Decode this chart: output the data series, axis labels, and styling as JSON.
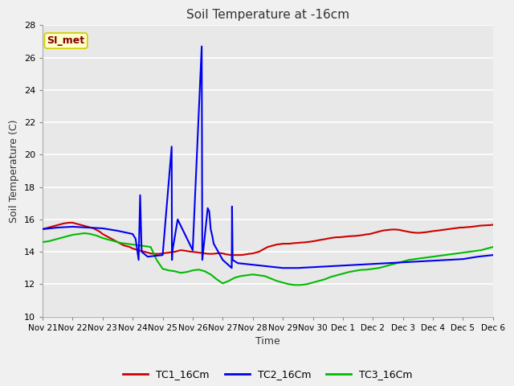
{
  "title": "Soil Temperature at -16cm",
  "xlabel": "Time",
  "ylabel": "Soil Temperature (C)",
  "ylim": [
    10,
    28
  ],
  "yticks": [
    10,
    12,
    14,
    16,
    18,
    20,
    22,
    24,
    26,
    28
  ],
  "fig_bg_color": "#f0f0f0",
  "plot_bg_color": "#e8e8e8",
  "grid_color": "#ffffff",
  "annotation_text": "SI_met",
  "annotation_bg": "#ffffcc",
  "annotation_border": "#cccc00",
  "annotation_text_color": "#880000",
  "tc1_color": "#cc0000",
  "tc2_color": "#0000ee",
  "tc3_color": "#00bb00",
  "legend_labels": [
    "TC1_16Cm",
    "TC2_16Cm",
    "TC3_16Cm"
  ],
  "xtick_labels": [
    "Nov 21",
    "Nov 22",
    "Nov 23",
    "Nov 24",
    "Nov 25",
    "Nov 26",
    "Nov 27",
    "Nov 28",
    "Nov 29",
    "Nov 30",
    "Dec 1",
    "Dec 2",
    "Dec 3",
    "Dec 4",
    "Dec 5",
    "Dec 6"
  ],
  "tc1_x": [
    0,
    0.1,
    0.2,
    0.3,
    0.4,
    0.5,
    0.6,
    0.7,
    0.8,
    0.9,
    1.0,
    1.1,
    1.2,
    1.3,
    1.4,
    1.5,
    1.6,
    1.7,
    1.8,
    1.9,
    2.0,
    2.1,
    2.2,
    2.3,
    2.4,
    2.5,
    2.6,
    2.7,
    2.8,
    2.9,
    3.0,
    3.1,
    3.2,
    3.3,
    3.4,
    3.5,
    3.6,
    3.7,
    3.8,
    3.9,
    4.0,
    4.1,
    4.2,
    4.3,
    4.4,
    4.5,
    4.6,
    4.7,
    4.8,
    4.9,
    5.0,
    5.1,
    5.2,
    5.3,
    5.4,
    5.5,
    5.6,
    5.7,
    5.8,
    5.9,
    6.0,
    6.1,
    6.2,
    6.3,
    6.4,
    6.5,
    6.6,
    6.7,
    6.8,
    6.9,
    7.0,
    7.1,
    7.2,
    7.3,
    7.4,
    7.5,
    7.6,
    7.7,
    7.8,
    7.9,
    8.0,
    8.1,
    8.2,
    8.3,
    8.4,
    8.5,
    8.6,
    8.7,
    8.8,
    8.9,
    9.0,
    9.1,
    9.2,
    9.3,
    9.4,
    9.5,
    9.6,
    9.7,
    9.8,
    9.9,
    10.0,
    10.1,
    10.2,
    10.3,
    10.4,
    10.5,
    10.6,
    10.7,
    10.8,
    10.9,
    11.0,
    11.1,
    11.2,
    11.3,
    11.4,
    11.5,
    11.6,
    11.7,
    11.8,
    11.9,
    12.0,
    12.1,
    12.2,
    12.3,
    12.4,
    12.5,
    12.6,
    12.7,
    12.8,
    12.9,
    13.0,
    13.1,
    13.2,
    13.3,
    13.4,
    13.5,
    13.6,
    13.7,
    13.8,
    13.9,
    14.0,
    14.1,
    14.2,
    14.3,
    14.4,
    14.5,
    14.6,
    14.7,
    14.8,
    14.9,
    15.0
  ],
  "tc1_y": [
    15.4,
    15.45,
    15.5,
    15.55,
    15.6,
    15.65,
    15.7,
    15.75,
    15.78,
    15.8,
    15.8,
    15.75,
    15.7,
    15.65,
    15.6,
    15.55,
    15.5,
    15.45,
    15.35,
    15.25,
    15.1,
    15.0,
    14.9,
    14.8,
    14.7,
    14.6,
    14.5,
    14.4,
    14.35,
    14.3,
    14.2,
    14.15,
    14.1,
    14.05,
    14.0,
    13.95,
    13.9,
    13.88,
    13.87,
    13.88,
    13.9,
    13.93,
    13.95,
    13.98,
    14.0,
    14.05,
    14.1,
    14.08,
    14.05,
    14.02,
    14.0,
    13.98,
    13.95,
    13.93,
    13.9,
    13.88,
    13.87,
    13.88,
    13.9,
    13.92,
    13.9,
    13.85,
    13.82,
    13.8,
    13.8,
    13.8,
    13.8,
    13.82,
    13.85,
    13.88,
    13.9,
    13.95,
    14.0,
    14.1,
    14.2,
    14.3,
    14.35,
    14.4,
    14.45,
    14.47,
    14.5,
    14.5,
    14.5,
    14.52,
    14.54,
    14.55,
    14.57,
    14.58,
    14.6,
    14.62,
    14.65,
    14.68,
    14.72,
    14.75,
    14.78,
    14.82,
    14.85,
    14.88,
    14.9,
    14.9,
    14.92,
    14.94,
    14.96,
    14.97,
    14.98,
    15.0,
    15.02,
    15.05,
    15.08,
    15.1,
    15.15,
    15.2,
    15.25,
    15.3,
    15.33,
    15.35,
    15.37,
    15.38,
    15.37,
    15.35,
    15.3,
    15.27,
    15.23,
    15.2,
    15.18,
    15.17,
    15.18,
    15.2,
    15.22,
    15.25,
    15.28,
    15.3,
    15.32,
    15.35,
    15.37,
    15.4,
    15.42,
    15.45,
    15.47,
    15.5,
    15.5,
    15.52,
    15.53,
    15.55,
    15.57,
    15.6,
    15.62,
    15.63,
    15.64,
    15.65,
    15.67,
    15.7
  ],
  "tc2_x": [
    0,
    0.5,
    1.0,
    1.5,
    2.0,
    2.5,
    3.0,
    3.1,
    3.2,
    3.25,
    3.3,
    3.5,
    4.0,
    4.3,
    4.31,
    4.32,
    4.5,
    5.0,
    5.3,
    5.31,
    5.32,
    5.5,
    5.55,
    5.6,
    5.65,
    5.7,
    6.0,
    6.3,
    6.31,
    6.32,
    6.33,
    6.5,
    7.0,
    7.5,
    8.0,
    8.5,
    9.0,
    9.5,
    10.0,
    10.5,
    11.0,
    11.5,
    12.0,
    12.5,
    13.0,
    13.5,
    14.0,
    14.5,
    15.0
  ],
  "tc2_y": [
    15.4,
    15.5,
    15.55,
    15.5,
    15.45,
    15.3,
    15.1,
    14.8,
    13.5,
    17.5,
    14.0,
    13.7,
    13.8,
    20.5,
    13.5,
    14.0,
    16.0,
    14.1,
    26.7,
    20.5,
    13.5,
    16.7,
    16.5,
    15.4,
    15.0,
    14.5,
    13.5,
    13.0,
    16.8,
    15.2,
    13.5,
    13.3,
    13.2,
    13.1,
    13.0,
    13.0,
    13.05,
    13.1,
    13.15,
    13.2,
    13.25,
    13.3,
    13.35,
    13.4,
    13.45,
    13.5,
    13.55,
    13.7,
    13.8
  ],
  "tc3_x": [
    0,
    0.2,
    0.4,
    0.6,
    0.8,
    1.0,
    1.2,
    1.4,
    1.6,
    1.8,
    2.0,
    2.2,
    2.4,
    2.6,
    2.8,
    3.0,
    3.2,
    3.4,
    3.6,
    3.8,
    4.0,
    4.2,
    4.4,
    4.6,
    4.8,
    5.0,
    5.2,
    5.4,
    5.6,
    5.8,
    6.0,
    6.2,
    6.4,
    6.6,
    6.8,
    7.0,
    7.2,
    7.4,
    7.6,
    7.8,
    8.0,
    8.2,
    8.4,
    8.6,
    8.8,
    9.0,
    9.2,
    9.4,
    9.6,
    9.8,
    10.0,
    10.2,
    10.4,
    10.6,
    10.8,
    11.0,
    11.2,
    11.4,
    11.6,
    11.8,
    12.0,
    12.2,
    12.4,
    12.6,
    12.8,
    13.0,
    13.2,
    13.4,
    13.6,
    13.8,
    14.0,
    14.2,
    14.4,
    14.6,
    14.8,
    15.0
  ],
  "tc3_y": [
    14.6,
    14.65,
    14.75,
    14.85,
    14.95,
    15.05,
    15.1,
    15.15,
    15.1,
    15.0,
    14.85,
    14.75,
    14.65,
    14.55,
    14.5,
    14.45,
    14.4,
    14.35,
    14.3,
    13.5,
    12.95,
    12.85,
    12.8,
    12.7,
    12.75,
    12.85,
    12.9,
    12.8,
    12.6,
    12.3,
    12.05,
    12.2,
    12.4,
    12.5,
    12.55,
    12.6,
    12.55,
    12.5,
    12.35,
    12.2,
    12.1,
    12.0,
    11.95,
    11.95,
    12.0,
    12.1,
    12.2,
    12.3,
    12.45,
    12.55,
    12.65,
    12.75,
    12.82,
    12.88,
    12.9,
    12.95,
    13.0,
    13.1,
    13.2,
    13.3,
    13.4,
    13.5,
    13.55,
    13.6,
    13.65,
    13.7,
    13.75,
    13.8,
    13.85,
    13.9,
    13.95,
    14.0,
    14.05,
    14.1,
    14.2,
    14.3
  ]
}
